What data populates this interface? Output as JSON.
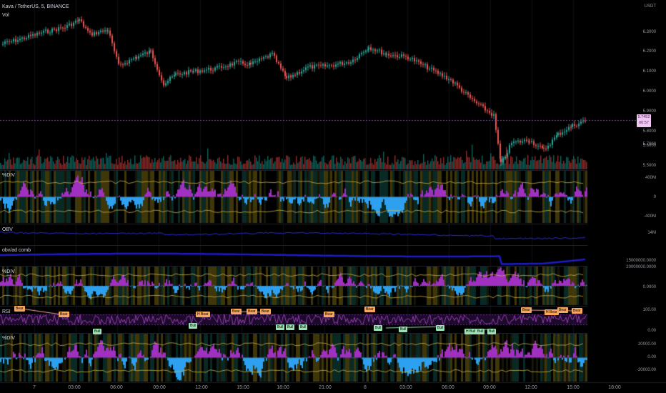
{
  "header": {
    "symbol_line": "Kava / TetherUS, 5, BINANCE",
    "vol_label": "Vol",
    "currency": "USDT"
  },
  "price_axis": [
    "6.3000",
    "6.2000",
    "6.1000",
    "6.0000",
    "5.9000",
    "5.8000",
    "5.7000",
    "5.6000",
    "5.5000"
  ],
  "last_price": {
    "price": "5.7452",
    "countdown": "00:57"
  },
  "panes": [
    {
      "title": "%DIV",
      "axis": [
        "400M",
        "0",
        "-400M"
      ]
    },
    {
      "title": "OBV",
      "axis": [
        "14M"
      ]
    },
    {
      "title": "obv/ad comb",
      "axis": [
        "15000000.0000"
      ]
    },
    {
      "title": "%DIV",
      "axis": [
        "20000000.0000",
        "0.0000"
      ]
    },
    {
      "title": "RSI",
      "axis": [
        "100.00",
        "0.00"
      ]
    },
    {
      "title": "%DIV",
      "axis": [
        "20000.00",
        "0.00",
        "-20000.00"
      ]
    }
  ],
  "rsi_tags": {
    "bear": [
      "Bear",
      "Bear",
      "H Bear",
      "Bear",
      "Bear",
      "Bear",
      "Bear",
      "Bear",
      "Bear",
      "H Bear",
      "Bear",
      "Bear"
    ],
    "bull": [
      "Bull",
      "Bull",
      "Bull",
      "Bull",
      "Bull",
      "Bull",
      "Bull",
      "Bull",
      "H Bull",
      "Bull",
      "Bull"
    ]
  },
  "time_axis": [
    "7",
    "03:00",
    "06:00",
    "09:00",
    "12:00",
    "15:00",
    "18:00",
    "21:00",
    "8",
    "03:00",
    "06:00",
    "09:00",
    "12:00",
    "15:00",
    "18:00"
  ],
  "colors": {
    "up": "#26a69a",
    "down": "#ef5350",
    "cyan": "#2da1f0",
    "magenta": "#a030c0",
    "orange": "#f7a65c",
    "green": "#9be3b5"
  }
}
